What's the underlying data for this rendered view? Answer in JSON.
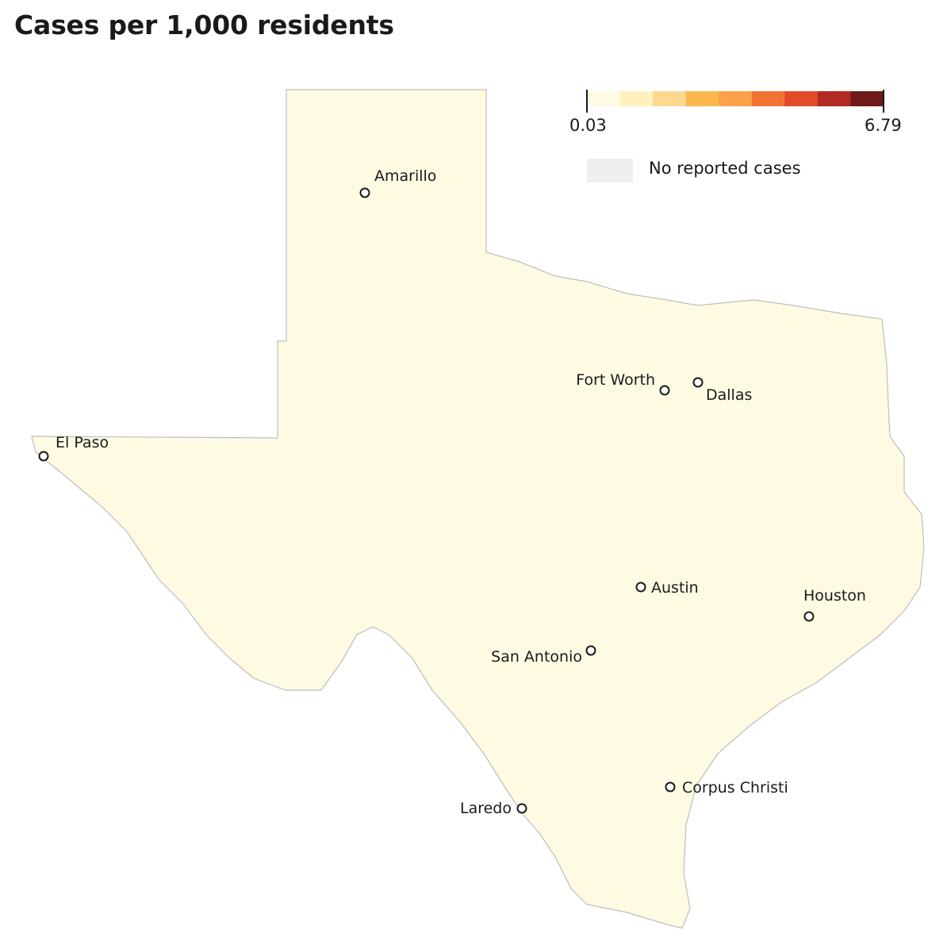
{
  "title": "Cases per 1,000 residents",
  "legend": {
    "min_label": "0.03",
    "max_label": "6.79",
    "no_data_label": "No reported cases",
    "no_data_color": "#efefef",
    "scale_colors": [
      "#fffbe3",
      "#fff1bf",
      "#fdd98f",
      "#fdb751",
      "#fca248",
      "#f27236",
      "#e24a2a",
      "#b32a22",
      "#6e1a1a"
    ]
  },
  "map": {
    "base_color": "#fffbe3",
    "cities": [
      {
        "name": "Amarillo"
      },
      {
        "name": "El Paso"
      },
      {
        "name": "Fort Worth"
      },
      {
        "name": "Dallas"
      },
      {
        "name": "Austin"
      },
      {
        "name": "Houston"
      },
      {
        "name": "San Antonio"
      },
      {
        "name": "Corpus Christi"
      },
      {
        "name": "Laredo"
      }
    ]
  }
}
